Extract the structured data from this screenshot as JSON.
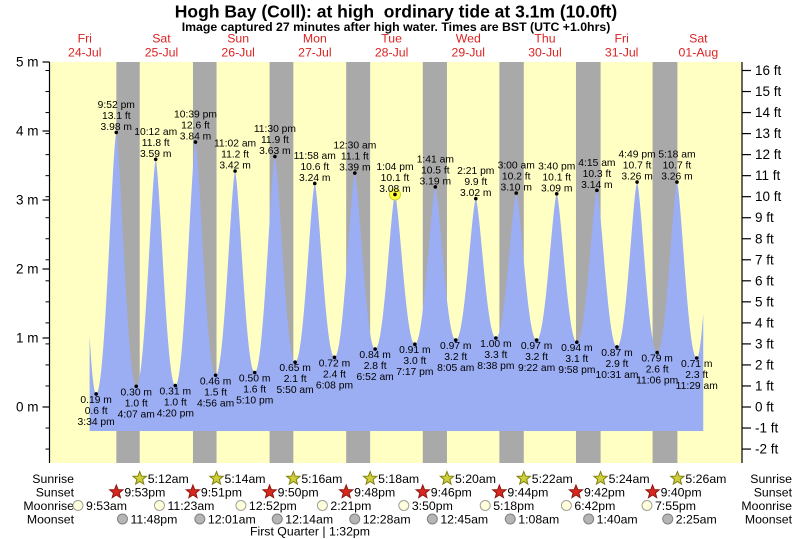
{
  "title": "Hogh Bay (Coll): at high  ordinary tide at 3.1m (10.0ft)",
  "subtitle": "Image captured 27 minutes after high water. Times are BST (UTC +1.0hrs)",
  "colors": {
    "plot_bg": "#ffffc3",
    "night_band": "#a9a9a9",
    "tide_fill": "#9badf3",
    "day_label_red": "#dd2222",
    "current_marker_yellow": "#ffff3c",
    "sunrise_star_fill": "#cfcf3a",
    "sunrise_star_stroke": "#7f7f10",
    "sunset_star_fill": "#d5281e",
    "sunset_star_stroke": "#8e1410",
    "moonrise_circle_fill": "#ffffdd",
    "moonrise_circle_stroke": "#a0a094",
    "moonset_circle_fill": "#b5b5b5",
    "moonset_circle_stroke": "#808080"
  },
  "chart_data": {
    "type": "area",
    "title": "Hogh Bay (Coll): at high  ordinary tide at 3.1m (10.0ft)",
    "days": [
      {
        "dow": "Fri",
        "date": "24-Jul"
      },
      {
        "dow": "Sat",
        "date": "25-Jul"
      },
      {
        "dow": "Sun",
        "date": "26-Jul"
      },
      {
        "dow": "Mon",
        "date": "27-Jul"
      },
      {
        "dow": "Tue",
        "date": "28-Jul"
      },
      {
        "dow": "Wed",
        "date": "29-Jul"
      },
      {
        "dow": "Thu",
        "date": "30-Jul"
      },
      {
        "dow": "Fri",
        "date": "31-Jul"
      },
      {
        "dow": "Sat",
        "date": "01-Aug"
      }
    ],
    "y_left": {
      "unit": "m",
      "ticks": [
        0,
        1,
        2,
        3,
        4,
        5
      ]
    },
    "y_right": {
      "unit": "ft",
      "min": -2,
      "max": 16
    },
    "window_hours": {
      "start": 13.52,
      "end": 205.52
    },
    "tides": [
      {
        "t": 10.66,
        "h": 3.55,
        "type": "high",
        "lines": null
      },
      {
        "t": 15.567,
        "h": 0.19,
        "type": "low",
        "lines": [
          "0.19 m",
          "0.6 ft",
          "3:34 pm"
        ]
      },
      {
        "t": 21.867,
        "h": 3.98,
        "type": "high",
        "lines": [
          "9:52 pm",
          "13.1 ft",
          "3.98 m"
        ]
      },
      {
        "t": 28.117,
        "h": 0.3,
        "type": "low",
        "lines": [
          "0.30 m",
          "1.0 ft",
          "4:07 am"
        ]
      },
      {
        "t": 34.2,
        "h": 3.59,
        "type": "high",
        "lines": [
          "10:12 am",
          "11.8 ft",
          "3.59 m"
        ]
      },
      {
        "t": 40.333,
        "h": 0.31,
        "type": "low",
        "lines": [
          "0.31 m",
          "1.0 ft",
          "4:20 pm"
        ]
      },
      {
        "t": 46.65,
        "h": 3.84,
        "type": "high",
        "lines": [
          "10:39 pm",
          "12.6 ft",
          "3.84 m"
        ]
      },
      {
        "t": 52.933,
        "h": 0.46,
        "type": "low",
        "lines": [
          "0.46 m",
          "1.5 ft",
          "4:56 am"
        ]
      },
      {
        "t": 59.033,
        "h": 3.42,
        "type": "high",
        "lines": [
          "11:02 am",
          "11.2 ft",
          "3.42 m"
        ]
      },
      {
        "t": 65.167,
        "h": 0.5,
        "type": "low",
        "lines": [
          "0.50 m",
          "1.6 ft",
          "5:10 pm"
        ]
      },
      {
        "t": 71.5,
        "h": 3.63,
        "type": "high",
        "lines": [
          "11:30 pm",
          "11.9 ft",
          "3.63 m"
        ]
      },
      {
        "t": 77.833,
        "h": 0.65,
        "type": "low",
        "lines": [
          "0.65 m",
          "2.1 ft",
          "5:50 am"
        ]
      },
      {
        "t": 83.967,
        "h": 3.24,
        "type": "high",
        "lines": [
          "11:58 am",
          "10.6 ft",
          "3.24 m"
        ]
      },
      {
        "t": 90.133,
        "h": 0.72,
        "type": "low",
        "lines": [
          "0.72 m",
          "2.4 ft",
          "6:08 pm"
        ]
      },
      {
        "t": 96.5,
        "h": 3.39,
        "type": "high",
        "lines": [
          "12:30 am",
          "11.1 ft",
          "3.39 m"
        ]
      },
      {
        "t": 102.867,
        "h": 0.84,
        "type": "low",
        "lines": [
          "0.84 m",
          "2.8 ft",
          "6:52 am"
        ]
      },
      {
        "t": 109.067,
        "h": 3.08,
        "type": "high",
        "lines": [
          "1:04 pm",
          "10.1 ft",
          "3.08 m"
        ],
        "current": true
      },
      {
        "t": 115.283,
        "h": 0.91,
        "type": "low",
        "lines": [
          "0.91 m",
          "3.0 ft",
          "7:17 pm"
        ]
      },
      {
        "t": 121.683,
        "h": 3.19,
        "type": "high",
        "lines": [
          "1:41 am",
          "10.5 ft",
          "3.19 m"
        ]
      },
      {
        "t": 128.083,
        "h": 0.97,
        "type": "low",
        "lines": [
          "0.97 m",
          "3.2 ft",
          "8:05 am"
        ]
      },
      {
        "t": 134.35,
        "h": 3.02,
        "type": "high",
        "lines": [
          "2:21 pm",
          "9.9 ft",
          "3.02 m"
        ]
      },
      {
        "t": 140.633,
        "h": 1.0,
        "type": "low",
        "lines": [
          "1.00 m",
          "3.3 ft",
          "8:38 pm"
        ]
      },
      {
        "t": 147.0,
        "h": 3.1,
        "type": "high",
        "lines": [
          "3:00 am",
          "10.2 ft",
          "3.10 m"
        ]
      },
      {
        "t": 153.367,
        "h": 0.97,
        "type": "low",
        "lines": [
          "0.97 m",
          "3.2 ft",
          "9:22 am"
        ]
      },
      {
        "t": 159.667,
        "h": 3.09,
        "type": "high",
        "lines": [
          "3:40 pm",
          "10.1 ft",
          "3.09 m"
        ]
      },
      {
        "t": 165.967,
        "h": 0.94,
        "type": "low",
        "lines": [
          "0.94 m",
          "3.1 ft",
          "9:58 pm"
        ]
      },
      {
        "t": 172.25,
        "h": 3.14,
        "type": "high",
        "lines": [
          "4:15 am",
          "10.3 ft",
          "3.14 m"
        ]
      },
      {
        "t": 178.517,
        "h": 0.87,
        "type": "low",
        "lines": [
          "0.87 m",
          "2.9 ft",
          "10:31 am"
        ]
      },
      {
        "t": 184.817,
        "h": 3.26,
        "type": "high",
        "lines": [
          "4:49 pm",
          "10.7 ft",
          "3.26 m"
        ]
      },
      {
        "t": 191.1,
        "h": 0.79,
        "type": "low",
        "lines": [
          "0.79 m",
          "2.6 ft",
          "11:06 pm"
        ]
      },
      {
        "t": 197.3,
        "h": 3.26,
        "type": "high",
        "lines": [
          "5:18 am",
          "10.7 ft",
          "3.26 m"
        ]
      },
      {
        "t": 203.483,
        "h": 0.71,
        "type": "low",
        "lines": [
          "0.71 m",
          "2.3 ft",
          "11:29 am"
        ]
      },
      {
        "t": 208.35,
        "h": 3.3,
        "type": "high",
        "lines": null
      }
    ],
    "nights": [
      {
        "sunset_t": 21.883,
        "sunrise_t": 29.2
      },
      {
        "sunset_t": 45.85,
        "sunrise_t": 53.233
      },
      {
        "sunset_t": 69.833,
        "sunrise_t": 77.267
      },
      {
        "sunset_t": 93.8,
        "sunrise_t": 101.3
      },
      {
        "sunset_t": 117.767,
        "sunrise_t": 125.333
      },
      {
        "sunset_t": 141.733,
        "sunrise_t": 149.367
      },
      {
        "sunset_t": 165.7,
        "sunrise_t": 173.4
      },
      {
        "sunset_t": 189.667,
        "sunrise_t": 197.433
      }
    ]
  },
  "astro": {
    "rows": [
      {
        "key": "sunrise",
        "label": "Sunrise",
        "icon": "sunrise-star",
        "events": [
          {
            "t": 29.2,
            "time": "5:12am"
          },
          {
            "t": 53.233,
            "time": "5:14am"
          },
          {
            "t": 77.267,
            "time": "5:16am"
          },
          {
            "t": 101.3,
            "time": "5:18am"
          },
          {
            "t": 125.333,
            "time": "5:20am"
          },
          {
            "t": 149.367,
            "time": "5:22am"
          },
          {
            "t": 173.4,
            "time": "5:24am"
          },
          {
            "t": 197.433,
            "time": "5:26am"
          }
        ]
      },
      {
        "key": "sunset",
        "label": "Sunset",
        "icon": "sunset-star",
        "events": [
          {
            "t": 21.883,
            "time": "9:53pm"
          },
          {
            "t": 45.85,
            "time": "9:51pm"
          },
          {
            "t": 69.833,
            "time": "9:50pm"
          },
          {
            "t": 93.8,
            "time": "9:48pm"
          },
          {
            "t": 117.767,
            "time": "9:46pm"
          },
          {
            "t": 141.733,
            "time": "9:44pm"
          },
          {
            "t": 165.7,
            "time": "9:42pm"
          },
          {
            "t": 189.667,
            "time": "9:40pm"
          }
        ]
      },
      {
        "key": "moonrise",
        "label": "Moonrise",
        "icon": "moonrise-circle",
        "events": [
          {
            "t": 9.883,
            "time": "9:53am"
          },
          {
            "t": 35.383,
            "time": "11:23am"
          },
          {
            "t": 60.867,
            "time": "12:52pm"
          },
          {
            "t": 86.35,
            "time": "2:21pm"
          },
          {
            "t": 111.833,
            "time": "3:50pm"
          },
          {
            "t": 137.3,
            "time": "5:18pm"
          },
          {
            "t": 162.7,
            "time": "6:42pm"
          },
          {
            "t": 187.917,
            "time": "7:55pm"
          }
        ]
      },
      {
        "key": "moonset",
        "label": "Moonset",
        "icon": "moonset-circle",
        "events": [
          {
            "t": 23.8,
            "time": "11:48pm"
          },
          {
            "t": 48.017,
            "time": "12:01am"
          },
          {
            "t": 72.233,
            "time": "12:14am"
          },
          {
            "t": 96.467,
            "time": "12:28am"
          },
          {
            "t": 120.75,
            "time": "12:45am"
          },
          {
            "t": 145.133,
            "time": "1:08am"
          },
          {
            "t": 169.667,
            "time": "1:40am"
          },
          {
            "t": 194.417,
            "time": "2:25am"
          }
        ]
      }
    ],
    "footer": "First Quarter | 1:32pm"
  }
}
